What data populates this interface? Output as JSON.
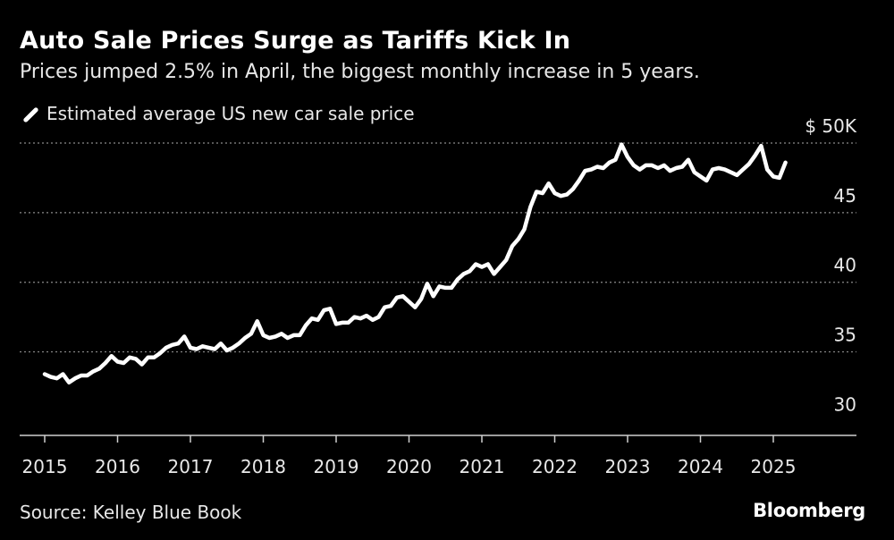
{
  "header": {
    "title": "Auto Sale Prices Surge as Tariffs Kick In",
    "subtitle": "Prices jumped 2.5% in April, the biggest monthly increase in 5 years."
  },
  "legend": {
    "label": "Estimated average US new car sale price"
  },
  "footer": {
    "source": "Source: Kelley Blue Book",
    "brand": "Bloomberg"
  },
  "colors": {
    "background": "#000000",
    "line": "#ffffff",
    "grid": "#8a8a8a",
    "text": "#e8e8e8"
  },
  "chart_data": {
    "type": "line",
    "title": "Auto Sale Prices Surge as Tariffs Kick In",
    "xlabel": "",
    "ylabel": "",
    "xlim": [
      2015,
      2026.13
    ],
    "ylim": [
      29,
      50
    ],
    "y_gridlines": [
      35,
      40,
      45,
      50
    ],
    "y_tick_labels": [
      {
        "value": 30,
        "label": "30"
      },
      {
        "value": 35,
        "label": "35"
      },
      {
        "value": 40,
        "label": "40"
      },
      {
        "value": 45,
        "label": "45"
      },
      {
        "value": 50,
        "label": "$ 50K"
      }
    ],
    "x_ticks": [
      2015,
      2016,
      2017,
      2018,
      2019,
      2020,
      2021,
      2022,
      2023,
      2024,
      2025
    ],
    "series": [
      {
        "name": "Estimated average US new car sale price",
        "unit": "thousand USD",
        "x_start": 2015.0,
        "x_step_months": 1,
        "values": [
          33.4,
          33.2,
          33.1,
          33.4,
          32.8,
          33.1,
          33.3,
          33.3,
          33.6,
          33.8,
          34.2,
          34.7,
          34.3,
          34.2,
          34.6,
          34.5,
          34.1,
          34.6,
          34.6,
          34.9,
          35.3,
          35.5,
          35.6,
          36.1,
          35.3,
          35.2,
          35.4,
          35.3,
          35.2,
          35.6,
          35.1,
          35.3,
          35.6,
          36.0,
          36.3,
          37.2,
          36.2,
          36.0,
          36.1,
          36.3,
          36.0,
          36.2,
          36.2,
          36.9,
          37.4,
          37.3,
          38.0,
          38.1,
          37.0,
          37.1,
          37.1,
          37.5,
          37.4,
          37.6,
          37.3,
          37.5,
          38.2,
          38.3,
          38.9,
          39.0,
          38.6,
          38.2,
          38.8,
          39.9,
          39.0,
          39.7,
          39.6,
          39.6,
          40.2,
          40.6,
          40.8,
          41.3,
          41.1,
          41.3,
          40.6,
          41.1,
          41.6,
          42.6,
          43.1,
          43.8,
          45.4,
          46.5,
          46.4,
          47.1,
          46.4,
          46.2,
          46.3,
          46.7,
          47.3,
          48.0,
          48.1,
          48.3,
          48.2,
          48.6,
          48.8,
          49.9,
          49.0,
          48.4,
          48.1,
          48.4,
          48.4,
          48.2,
          48.4,
          48.0,
          48.2,
          48.3,
          48.8,
          47.9,
          47.6,
          47.3,
          48.1,
          48.2,
          48.1,
          47.9,
          47.7,
          48.1,
          48.5,
          49.1,
          49.8,
          48.1,
          47.6,
          47.5,
          48.6
        ]
      }
    ]
  }
}
